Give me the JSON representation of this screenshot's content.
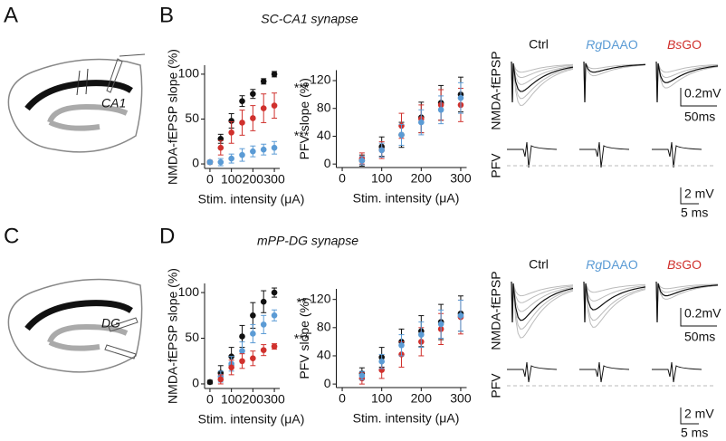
{
  "panel_labels": [
    "A",
    "B",
    "C",
    "D"
  ],
  "synapse_titles": [
    "SC-CA1 synapse",
    "mPP-DG synapse"
  ],
  "schematic_labels": [
    "CA1",
    "DG"
  ],
  "trace_headers": {
    "ctrl": "Ctrl",
    "rg_italic": "Rg",
    "rg_rest": "DAAO",
    "bs_italic": "Bs",
    "bs_rest": "GO"
  },
  "trace_labels": {
    "nmda": "NMDA-fEPSP",
    "pfv": "PFV"
  },
  "scale_bars": {
    "nmda_v": "0.2mV",
    "nmda_t": "50ms",
    "pfv_v": "2 mV",
    "pfv_t": "5 ms"
  },
  "chart_data": [
    {
      "type": "scatter",
      "y_label": "NMDA-fEPSP slope (%)",
      "x_label": "Stim. intensity (μA)",
      "xlim": [
        -25,
        325
      ],
      "xticks": [
        0,
        100,
        200,
        300
      ],
      "ylim": [
        -5,
        110
      ],
      "yticks": [
        0,
        50,
        100
      ],
      "x": [
        0,
        50,
        100,
        150,
        200,
        250,
        300
      ],
      "series": [
        {
          "color": "#111111",
          "values": [
            2,
            28,
            48,
            70,
            78,
            92,
            100
          ],
          "errors": [
            2,
            5,
            8,
            6,
            5,
            3,
            3
          ]
        },
        {
          "color": "#d0312d",
          "values": [
            2,
            18,
            35,
            46,
            51,
            62,
            65
          ],
          "errors": [
            2,
            8,
            12,
            14,
            14,
            16,
            14
          ]
        },
        {
          "color": "#5b9bd5",
          "values": [
            2,
            2,
            6,
            10,
            14,
            16,
            18
          ],
          "errors": [
            2,
            4,
            5,
            7,
            6,
            6,
            7
          ]
        }
      ],
      "annotations": [
        "***",
        "***"
      ]
    },
    {
      "type": "scatter",
      "y_label": "PFV slope (%)",
      "x_label": "Stim. intensity (μA)",
      "xlim": [
        -15,
        315
      ],
      "xticks": [
        0,
        100,
        200,
        300
      ],
      "ylim": [
        -5,
        135
      ],
      "yticks": [
        0,
        40,
        80,
        120
      ],
      "x": [
        50,
        100,
        150,
        200,
        250,
        300
      ],
      "series": [
        {
          "color": "#111111",
          "values": [
            5,
            25,
            42,
            67,
            88,
            100
          ],
          "errors": [
            8,
            14,
            18,
            22,
            25,
            25
          ]
        },
        {
          "color": "#d0312d",
          "values": [
            8,
            20,
            55,
            65,
            85,
            85
          ],
          "errors": [
            8,
            12,
            18,
            20,
            22,
            24
          ]
        },
        {
          "color": "#5b9bd5",
          "values": [
            5,
            20,
            42,
            60,
            78,
            95
          ],
          "errors": [
            6,
            10,
            15,
            18,
            20,
            22
          ]
        }
      ],
      "annotations": []
    },
    {
      "type": "scatter",
      "y_label": "NMDA-fEPSP slope (%)",
      "x_label": "Stim. intensity (μA)",
      "xlim": [
        -25,
        325
      ],
      "xticks": [
        0,
        100,
        200,
        300
      ],
      "ylim": [
        -5,
        110
      ],
      "yticks": [
        0,
        50,
        100
      ],
      "x": [
        0,
        50,
        100,
        150,
        200,
        250,
        300
      ],
      "series": [
        {
          "color": "#111111",
          "values": [
            2,
            12,
            30,
            52,
            75,
            90,
            100
          ],
          "errors": [
            2,
            8,
            10,
            12,
            14,
            12,
            5
          ]
        },
        {
          "color": "#5b9bd5",
          "values": [
            null,
            8,
            22,
            36,
            55,
            65,
            75
          ],
          "errors": [
            null,
            6,
            8,
            10,
            10,
            10,
            6
          ]
        },
        {
          "color": "#d0312d",
          "values": [
            null,
            5,
            18,
            25,
            28,
            37,
            41
          ],
          "errors": [
            null,
            5,
            8,
            8,
            8,
            6,
            3
          ]
        }
      ],
      "annotations": [
        "**",
        "***"
      ]
    },
    {
      "type": "scatter",
      "y_label": "PFV slope (%)",
      "x_label": "Stim. intensity (μA)",
      "xlim": [
        -15,
        315
      ],
      "xticks": [
        0,
        100,
        200,
        300
      ],
      "ylim": [
        -5,
        135
      ],
      "yticks": [
        0,
        40,
        80,
        120
      ],
      "x": [
        50,
        100,
        150,
        200,
        250,
        300
      ],
      "series": [
        {
          "color": "#111111",
          "values": [
            15,
            38,
            60,
            75,
            88,
            100
          ],
          "errors": [
            8,
            14,
            18,
            22,
            25,
            25
          ]
        },
        {
          "color": "#d0312d",
          "values": [
            8,
            20,
            42,
            60,
            78,
            95
          ],
          "errors": [
            8,
            12,
            18,
            20,
            22,
            24
          ]
        },
        {
          "color": "#5b9bd5",
          "values": [
            12,
            32,
            55,
            70,
            85,
            97
          ],
          "errors": [
            6,
            10,
            15,
            18,
            20,
            22
          ]
        }
      ],
      "annotations": []
    }
  ]
}
